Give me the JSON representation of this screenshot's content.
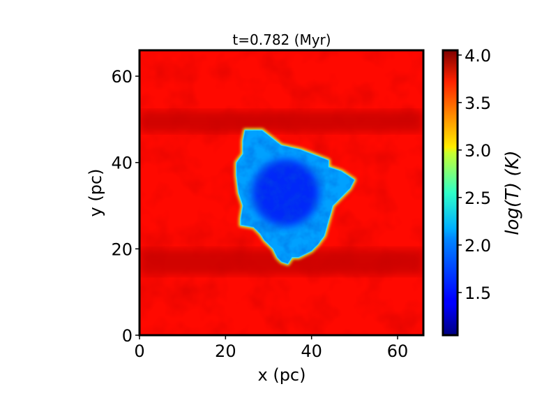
{
  "chart_data": {
    "type": "heatmap",
    "title": "t=0.782 (Myr)",
    "xlabel": "x (pc)",
    "ylabel": "y (pc)",
    "xlim": [
      0,
      66
    ],
    "ylim": [
      0,
      66
    ],
    "xticks": [
      {
        "value": 0,
        "label": "0"
      },
      {
        "value": 20,
        "label": "20"
      },
      {
        "value": 40,
        "label": "40"
      },
      {
        "value": 60,
        "label": "60"
      }
    ],
    "yticks": [
      {
        "value": 0,
        "label": "0"
      },
      {
        "value": 20,
        "label": "20"
      },
      {
        "value": 40,
        "label": "40"
      },
      {
        "value": 60,
        "label": "60"
      }
    ],
    "colorbar": {
      "label": "log(T) (K)",
      "range": [
        1.05,
        4.05
      ],
      "colormap": "jet",
      "ticks": [
        {
          "value": 1.5,
          "label": "1.5"
        },
        {
          "value": 2.0,
          "label": "2.0"
        },
        {
          "value": 2.5,
          "label": "2.5"
        },
        {
          "value": 3.0,
          "label": "3.0"
        },
        {
          "value": 3.5,
          "label": "3.5"
        },
        {
          "value": 4.0,
          "label": "4.0"
        }
      ]
    },
    "field": {
      "background_logT": 3.65,
      "hot_band_logT": 3.9,
      "hot_bands_y": [
        [
          47,
          52
        ],
        [
          14,
          20
        ]
      ],
      "cloud": {
        "interior_logT": 1.9,
        "core_logT": 1.4,
        "core_center": [
          34,
          33
        ],
        "edge_logT": 2.8,
        "outline": [
          [
            24.5,
            47.5
          ],
          [
            28.5,
            47.5
          ],
          [
            33,
            44
          ],
          [
            37.5,
            43
          ],
          [
            41.5,
            41.5
          ],
          [
            44,
            40.5
          ],
          [
            44,
            39
          ],
          [
            47,
            38
          ],
          [
            48.5,
            37
          ],
          [
            50,
            36
          ],
          [
            49,
            34
          ],
          [
            47.5,
            32.5
          ],
          [
            46,
            31
          ],
          [
            45,
            30
          ],
          [
            44,
            26.5
          ],
          [
            43,
            23
          ],
          [
            41.5,
            21
          ],
          [
            40,
            19.5
          ],
          [
            37,
            18
          ],
          [
            35.5,
            18
          ],
          [
            34.5,
            16.5
          ],
          [
            33,
            17
          ],
          [
            32,
            18
          ],
          [
            31,
            20
          ],
          [
            29,
            22
          ],
          [
            28,
            23.5
          ],
          [
            26.5,
            25
          ],
          [
            23.5,
            25.5
          ],
          [
            23.5,
            27
          ],
          [
            24,
            30
          ],
          [
            23,
            33
          ],
          [
            22.5,
            37
          ],
          [
            22.5,
            40
          ],
          [
            24,
            42
          ],
          [
            24,
            45
          ]
        ]
      }
    }
  }
}
